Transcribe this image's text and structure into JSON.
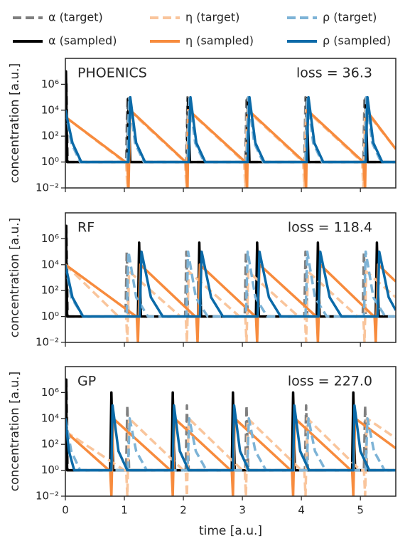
{
  "legend": [
    {
      "name": "α (target)",
      "color": "#7f7f7f",
      "dashed": true
    },
    {
      "name": "α (sampled)",
      "color": "#000000",
      "dashed": false
    },
    {
      "name": "η (target)",
      "color": "#f9c59c",
      "dashed": true
    },
    {
      "name": "η (sampled)",
      "color": "#f78b3d",
      "dashed": false
    },
    {
      "name": "ρ (target)",
      "color": "#7db3d6",
      "dashed": true
    },
    {
      "name": "ρ (sampled)",
      "color": "#0b6aa8",
      "dashed": false
    }
  ],
  "chart_data": [
    {
      "type": "line",
      "title": "PHOENICS",
      "annotation": "loss = 36.3",
      "ylabel": "concentration [a.u.]",
      "log_y": true,
      "xlim": [
        0,
        5.6
      ],
      "xticks": [
        0,
        1,
        2,
        3,
        4,
        5
      ],
      "ylim": [
        0.01,
        100000000
      ],
      "yticks": [
        {
          "value": 0.01,
          "label": "10⁻²"
        },
        {
          "value": 1,
          "label": "10⁰"
        },
        {
          "value": 100,
          "label": "10²"
        },
        {
          "value": 10000,
          "label": "10⁴"
        },
        {
          "value": 1000000,
          "label": "10⁶"
        }
      ],
      "series": [
        {
          "x": [
            0,
            0.02,
            0.04,
            1.03,
            1.05,
            1.08,
            2.05,
            2.07,
            2.1,
            3.05,
            3.07,
            3.1,
            4.05,
            4.07,
            4.1,
            5.05,
            5.07,
            5.1,
            5.6
          ],
          "values": [
            1,
            1000000,
            1,
            1,
            100000,
            1,
            1,
            100000,
            1,
            1,
            100000,
            1,
            1,
            100000,
            1,
            1,
            100000,
            1,
            1
          ]
        },
        {
          "x": [
            0,
            0.01,
            0.03,
            1.05,
            1.07,
            1.1,
            2.06,
            2.08,
            2.11,
            3.07,
            3.09,
            3.12,
            4.07,
            4.09,
            4.12,
            5.07,
            5.09,
            5.12,
            5.6
          ],
          "values": [
            1,
            10000000,
            1,
            1,
            80000,
            1,
            1,
            80000,
            1,
            1,
            80000,
            1,
            1,
            80000,
            1,
            1,
            80000,
            1,
            1
          ]
        },
        {
          "x": [
            0,
            1.0,
            1.03,
            1.05,
            1.08,
            2.03,
            2.05,
            2.08,
            3.03,
            3.05,
            3.08,
            4.03,
            4.05,
            4.08,
            5.03,
            5.05,
            5.08,
            5.6
          ],
          "values": [
            3000,
            1,
            1,
            0.01,
            10000,
            1,
            0.01,
            10000,
            1,
            0.01,
            10000,
            1,
            0.01,
            10000,
            1,
            0.01,
            10000,
            10
          ]
        },
        {
          "x": [
            0,
            1.02,
            1.05,
            1.07,
            1.1,
            2.04,
            2.07,
            2.09,
            3.05,
            3.08,
            3.1,
            4.05,
            4.08,
            4.1,
            5.05,
            5.08,
            5.1,
            5.6
          ],
          "values": [
            3000,
            1,
            1,
            0.01,
            10000,
            1,
            0.01,
            10000,
            1,
            0.01,
            10000,
            1,
            0.01,
            10000,
            1,
            0.01,
            10000,
            10
          ]
        },
        {
          "x": [
            0,
            0.1,
            0.25,
            1.05,
            1.08,
            1.18,
            1.33,
            2.07,
            2.1,
            2.2,
            2.35,
            3.07,
            3.1,
            3.2,
            3.35,
            4.07,
            4.1,
            4.2,
            4.35,
            5.07,
            5.1,
            5.2,
            5.35,
            5.6
          ],
          "values": [
            10000,
            30,
            1,
            1,
            100000,
            30,
            1,
            1,
            100000,
            30,
            1,
            1,
            100000,
            30,
            1,
            1,
            100000,
            30,
            1,
            1,
            100000,
            30,
            1,
            1
          ]
        },
        {
          "x": [
            0,
            0.12,
            0.27,
            1.07,
            1.1,
            1.2,
            1.35,
            2.09,
            2.12,
            2.22,
            2.37,
            3.09,
            3.12,
            3.22,
            3.37,
            4.09,
            4.12,
            4.22,
            4.37,
            5.09,
            5.12,
            5.22,
            5.37,
            5.6
          ],
          "values": [
            10000,
            30,
            1,
            1,
            100000,
            30,
            1,
            1,
            100000,
            30,
            1,
            1,
            100000,
            30,
            1,
            1,
            100000,
            30,
            1,
            1,
            100000,
            30,
            1,
            1
          ]
        }
      ]
    },
    {
      "type": "line",
      "title": "RF",
      "annotation": "loss = 118.4",
      "ylabel": "concentration [a.u.]",
      "log_y": true,
      "xlim": [
        0,
        5.6
      ],
      "xticks": [
        0,
        1,
        2,
        3,
        4,
        5
      ],
      "ylim": [
        0.01,
        100000000
      ],
      "yticks": [
        {
          "value": 0.01,
          "label": "10⁻²"
        },
        {
          "value": 1,
          "label": "10⁰"
        },
        {
          "value": 100,
          "label": "10²"
        },
        {
          "value": 10000,
          "label": "10⁴"
        },
        {
          "value": 1000000,
          "label": "10⁶"
        }
      ],
      "series": [
        {
          "x": [
            0,
            0.02,
            0.04,
            1.02,
            1.04,
            1.07,
            2.03,
            2.05,
            2.08,
            3.04,
            3.06,
            3.09,
            4.05,
            4.07,
            4.1,
            5.04,
            5.06,
            5.09,
            5.6
          ],
          "values": [
            1,
            10000000,
            1,
            1,
            100000,
            1,
            1,
            100000,
            1,
            1,
            100000,
            1,
            1,
            100000,
            1,
            1,
            100000,
            1,
            1
          ]
        },
        {
          "x": [
            0,
            0.01,
            0.03,
            1.23,
            1.25,
            1.28,
            2.25,
            2.27,
            2.3,
            3.23,
            3.25,
            3.28,
            4.26,
            4.28,
            4.31,
            5.26,
            5.28,
            5.31,
            5.6
          ],
          "values": [
            1,
            10000000,
            1,
            1,
            500000,
            1,
            1,
            500000,
            1,
            1,
            500000,
            1,
            1,
            500000,
            1,
            1,
            500000,
            1,
            1
          ]
        },
        {
          "x": [
            0,
            0.9,
            1.03,
            1.05,
            1.08,
            1.95,
            2.04,
            2.06,
            2.09,
            2.95,
            3.05,
            3.07,
            3.1,
            3.95,
            4.06,
            4.08,
            4.11,
            4.95,
            5.05,
            5.07,
            5.1,
            5.6
          ],
          "values": [
            10000,
            1,
            1,
            0.01,
            3000,
            1,
            1,
            0.01,
            3000,
            1,
            1,
            0.01,
            3000,
            1,
            1,
            0.01,
            3000,
            1,
            1,
            0.01,
            3000,
            30
          ]
        },
        {
          "x": [
            0,
            1.2,
            1.21,
            1.23,
            1.27,
            2.2,
            2.22,
            2.24,
            2.28,
            3.22,
            3.23,
            3.25,
            3.29,
            4.25,
            4.26,
            4.28,
            4.32,
            5.23,
            5.24,
            5.26,
            5.3,
            5.6
          ],
          "values": [
            10000,
            1,
            1,
            0.01,
            10000,
            1,
            1,
            0.01,
            10000,
            1,
            1,
            0.01,
            10000,
            1,
            1,
            0.01,
            10000,
            1,
            1,
            0.01,
            10000,
            500
          ]
        },
        {
          "x": [
            0,
            0.1,
            0.3,
            1.04,
            1.07,
            1.2,
            1.4,
            2.05,
            2.08,
            2.21,
            2.41,
            3.06,
            3.09,
            3.22,
            3.42,
            4.07,
            4.1,
            4.23,
            4.43,
            5.06,
            5.09,
            5.22,
            5.42,
            5.6
          ],
          "values": [
            10000,
            30,
            1,
            1,
            100000,
            30,
            1,
            1,
            100000,
            30,
            1,
            1,
            100000,
            30,
            1,
            1,
            100000,
            30,
            1,
            1,
            100000,
            30,
            1,
            1
          ]
        },
        {
          "x": [
            0,
            0.12,
            0.3,
            1.26,
            1.29,
            1.45,
            1.65,
            2.28,
            2.31,
            2.47,
            2.67,
            3.26,
            3.29,
            3.45,
            3.65,
            4.29,
            4.32,
            4.48,
            4.68,
            5.29,
            5.32,
            5.48,
            5.6
          ],
          "values": [
            10000,
            30,
            1,
            1,
            100000,
            30,
            1,
            1,
            100000,
            30,
            1,
            1,
            100000,
            30,
            1,
            1,
            100000,
            30,
            1,
            1,
            100000,
            30,
            3
          ]
        }
      ]
    },
    {
      "type": "line",
      "title": "GP",
      "annotation": "loss = 227.0",
      "ylabel": "concentration [a.u.]",
      "xlabel": "time [a.u.]",
      "log_y": true,
      "xlim": [
        0,
        5.6
      ],
      "xticks": [
        0,
        1,
        2,
        3,
        4,
        5
      ],
      "ylim": [
        0.01,
        100000000
      ],
      "yticks": [
        {
          "value": 0.01,
          "label": "10⁻²"
        },
        {
          "value": 1,
          "label": "10⁰"
        },
        {
          "value": 100,
          "label": "10²"
        },
        {
          "value": 10000,
          "label": "10⁴"
        },
        {
          "value": 1000000,
          "label": "10⁶"
        }
      ],
      "series": [
        {
          "x": [
            0,
            0.02,
            0.04,
            1.03,
            1.05,
            1.08,
            2.04,
            2.06,
            2.09,
            3.05,
            3.07,
            3.1,
            4.06,
            4.08,
            4.11,
            5.06,
            5.08,
            5.11,
            5.6
          ],
          "values": [
            1,
            10000000,
            1,
            1,
            100000,
            1,
            1,
            100000,
            1,
            1,
            100000,
            1,
            1,
            100000,
            1,
            1,
            100000,
            1,
            1
          ]
        },
        {
          "x": [
            0,
            0.01,
            0.03,
            0.76,
            0.78,
            0.81,
            1.8,
            1.82,
            1.85,
            2.82,
            2.84,
            2.87,
            3.84,
            3.86,
            3.89,
            4.86,
            4.88,
            4.91,
            5.6
          ],
          "values": [
            1,
            10000000,
            1,
            1,
            1000000,
            1,
            1,
            1000000,
            1,
            1,
            1000000,
            1,
            1,
            1000000,
            1,
            1,
            1000000,
            1,
            1
          ]
        },
        {
          "x": [
            0,
            1.0,
            1.03,
            1.05,
            1.08,
            2.0,
            2.04,
            2.06,
            2.09,
            3.0,
            3.04,
            3.06,
            3.09,
            4.0,
            4.05,
            4.07,
            4.1,
            5.0,
            5.06,
            5.08,
            5.11,
            5.6
          ],
          "values": [
            1000,
            1,
            1,
            0.01,
            10000,
            1,
            1,
            0.01,
            10000,
            1,
            1,
            0.01,
            10000,
            1,
            1,
            0.01,
            10000,
            1,
            1,
            0.01,
            10000,
            300
          ]
        },
        {
          "x": [
            0,
            0.74,
            0.76,
            0.78,
            0.81,
            1.78,
            1.8,
            1.82,
            1.85,
            2.8,
            2.82,
            2.84,
            2.87,
            3.82,
            3.84,
            3.86,
            3.89,
            4.84,
            4.86,
            4.88,
            4.91,
            5.6
          ],
          "values": [
            1000,
            1,
            1,
            0.01,
            10000,
            1,
            1,
            0.01,
            10000,
            1,
            1,
            0.01,
            10000,
            1,
            1,
            0.01,
            10000,
            1,
            1,
            0.01,
            10000,
            50
          ]
        },
        {
          "x": [
            0,
            0.1,
            0.25,
            1.06,
            1.09,
            1.2,
            1.38,
            2.07,
            2.1,
            2.21,
            2.39,
            3.08,
            3.11,
            3.22,
            3.4,
            4.09,
            4.12,
            4.23,
            4.41,
            5.09,
            5.12,
            5.23,
            5.41,
            5.6
          ],
          "values": [
            10000,
            30,
            1,
            1,
            10000,
            30,
            1,
            1,
            10000,
            30,
            1,
            1,
            10000,
            30,
            1,
            1,
            10000,
            30,
            1,
            1,
            10000,
            30,
            1,
            1
          ]
        },
        {
          "x": [
            0,
            0.06,
            0.15,
            0.78,
            0.8,
            0.9,
            1.05,
            1.82,
            1.84,
            1.94,
            2.09,
            2.84,
            2.86,
            2.96,
            3.11,
            3.86,
            3.88,
            3.98,
            4.13,
            4.88,
            4.9,
            5.0,
            5.15,
            5.6
          ],
          "values": [
            10000,
            30,
            1,
            1,
            100000,
            30,
            1,
            1,
            100000,
            30,
            1,
            1,
            100000,
            30,
            1,
            1,
            100000,
            30,
            1,
            1,
            100000,
            30,
            1,
            1
          ]
        }
      ]
    }
  ]
}
